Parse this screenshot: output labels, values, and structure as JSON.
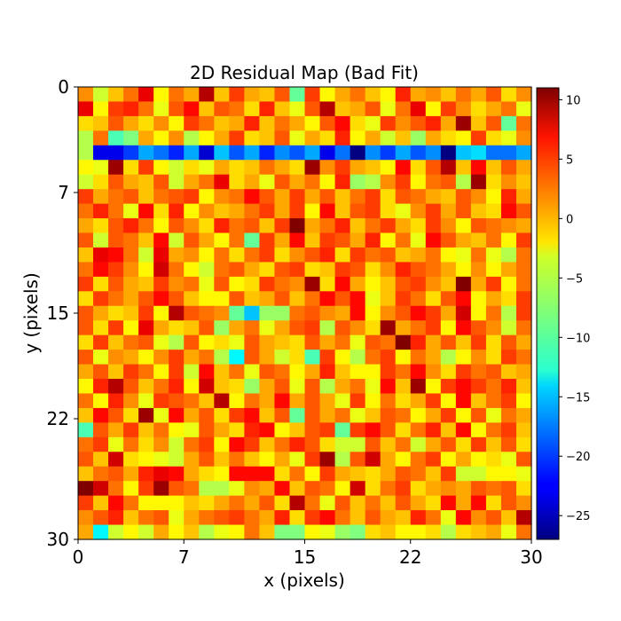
{
  "chart_data": {
    "type": "heatmap",
    "title": "2D Residual Map (Bad Fit)",
    "xlabel": "x (pixels)",
    "ylabel": "y (pixels)",
    "x_ticks": [
      "0",
      "7",
      "15",
      "22",
      "30"
    ],
    "y_ticks": [
      "0",
      "7",
      "15",
      "22",
      "30"
    ],
    "xlim": [
      0,
      30
    ],
    "ylim": [
      30,
      0
    ],
    "colormap": "jet",
    "vmin": -27,
    "vmax": 11,
    "colorbar_ticks": [
      "10",
      "5",
      "0",
      "−5",
      "−10",
      "−15",
      "−20",
      "−25"
    ],
    "colorbar_values": [
      10,
      5,
      0,
      -5,
      -10,
      -15,
      -20,
      -25
    ],
    "grid": false,
    "values": [
      [
        1,
        -5,
        -1,
        2,
        7,
        -3,
        2,
        0,
        9,
        -1,
        4,
        0,
        -1,
        3,
        -9,
        4,
        -3,
        0,
        2,
        -1,
        -3,
        5,
        0,
        1,
        -1,
        2,
        0,
        3,
        -2,
        1
      ],
      [
        7,
        -3,
        4,
        5,
        2,
        -4,
        3,
        6,
        -1,
        3,
        2,
        -2,
        5,
        -1,
        -4,
        3,
        9,
        -1,
        0,
        3,
        -4,
        2,
        7,
        -3,
        4,
        1,
        -2,
        0,
        2,
        -4
      ],
      [
        -2,
        -1,
        3,
        0,
        -2,
        1,
        -3,
        4,
        2,
        -1,
        0,
        5,
        -1,
        2,
        0,
        -3,
        3,
        6,
        -2,
        -4,
        4,
        1,
        3,
        5,
        0,
        10,
        -1,
        3,
        -9,
        2
      ],
      [
        -6,
        2,
        -10,
        -8,
        0,
        -3,
        1,
        -6,
        -3,
        0,
        4,
        -2,
        -1,
        3,
        -4,
        0,
        -2,
        5,
        -3,
        0,
        -5,
        -1,
        -7,
        0,
        -2,
        -3,
        4,
        -2,
        -4,
        1
      ],
      [
        -6,
        -23,
        -23,
        -20,
        -16,
        -18,
        -21,
        -16,
        -24,
        -15,
        -19,
        -16,
        -21,
        -17,
        -19,
        -16,
        -23,
        -18,
        -27,
        -17,
        -20,
        -16,
        -19,
        -17,
        -27,
        -15,
        -14,
        -18,
        -18,
        -16
      ],
      [
        -3,
        -4,
        10,
        -2,
        4,
        -3,
        -5,
        -2,
        -4,
        0,
        -2,
        -1,
        2,
        0,
        -2,
        10,
        1,
        4,
        0,
        -1,
        -3,
        6,
        -2,
        3,
        9,
        -1,
        6,
        -1,
        3,
        0
      ],
      [
        -5,
        -2,
        3,
        0,
        -1,
        3,
        -5,
        0,
        2,
        7,
        -2,
        0,
        -4,
        3,
        0,
        2,
        -3,
        5,
        -7,
        -6,
        1,
        4,
        -3,
        2,
        3,
        -6,
        10,
        -2,
        1,
        -1
      ],
      [
        4,
        0,
        2,
        3,
        -1,
        2,
        3,
        4,
        -3,
        1,
        2,
        6,
        3,
        0,
        4,
        0,
        3,
        -1,
        2,
        4,
        -2,
        3,
        2,
        0,
        -1,
        3,
        1,
        -3,
        5,
        0
      ],
      [
        2,
        5,
        2,
        -4,
        6,
        -2,
        5,
        -3,
        1,
        -1,
        0,
        2,
        4,
        0,
        4,
        -3,
        6,
        -1,
        3,
        4,
        -2,
        -4,
        1,
        4,
        0,
        3,
        -1,
        -2,
        6,
        3
      ],
      [
        0,
        -2,
        3,
        5,
        2,
        -3,
        3,
        1,
        -2,
        5,
        2,
        3,
        -1,
        4,
        11,
        0,
        2,
        5,
        -1,
        2,
        4,
        0,
        -2,
        4,
        1,
        -3,
        3,
        2,
        1,
        0
      ],
      [
        3,
        -5,
        3,
        2,
        -1,
        6,
        -5,
        3,
        0,
        -3,
        2,
        -9,
        4,
        0,
        6,
        -1,
        4,
        3,
        0,
        5,
        -3,
        2,
        -4,
        6,
        3,
        0,
        -1,
        2,
        -3,
        4
      ],
      [
        -1,
        7,
        6,
        2,
        -5,
        7,
        0,
        1,
        -3,
        2,
        -2,
        2,
        4,
        -2,
        1,
        3,
        5,
        -2,
        4,
        2,
        3,
        -1,
        0,
        2,
        -3,
        -4,
        2,
        -4,
        -6,
        2
      ],
      [
        2,
        6,
        4,
        1,
        -3,
        8,
        2,
        -3,
        -5,
        2,
        3,
        0,
        -2,
        3,
        4,
        -2,
        -1,
        4,
        3,
        -2,
        1,
        5,
        3,
        2,
        0,
        -3,
        1,
        -3,
        0,
        2
      ],
      [
        4,
        -2,
        3,
        0,
        -1,
        4,
        1,
        2,
        -4,
        3,
        -3,
        -2,
        4,
        2,
        1,
        10,
        -2,
        6,
        0,
        -3,
        -1,
        3,
        4,
        1,
        -1,
        11,
        0,
        4,
        -3,
        2
      ],
      [
        -2,
        4,
        2,
        0,
        3,
        6,
        3,
        -1,
        -3,
        -3,
        3,
        -1,
        0,
        3,
        -1,
        2,
        6,
        3,
        6,
        -4,
        -1,
        4,
        2,
        -2,
        3,
        6,
        -3,
        0,
        -2,
        4
      ],
      [
        3,
        0,
        -2,
        -1,
        4,
        -3,
        9,
        3,
        2,
        1,
        -9,
        -15,
        -7,
        -7,
        2,
        3,
        1,
        0,
        6,
        -3,
        1,
        3,
        6,
        4,
        0,
        8,
        -3,
        2,
        -6,
        4
      ],
      [
        3,
        -2,
        4,
        -3,
        7,
        0,
        -2,
        -1,
        3,
        -7,
        0,
        2,
        -4,
        0,
        3,
        4,
        -6,
        3,
        1,
        -2,
        10,
        0,
        2,
        4,
        -3,
        6,
        3,
        1,
        -5,
        2
      ],
      [
        -2,
        4,
        -1,
        2,
        3,
        -4,
        -6,
        3,
        -3,
        -2,
        -4,
        3,
        0,
        -1,
        -2,
        3,
        0,
        2,
        -4,
        3,
        2,
        11,
        5,
        0,
        3,
        -1,
        4,
        -2,
        3,
        0
      ],
      [
        3,
        -4,
        1,
        0,
        -3,
        1,
        4,
        0,
        2,
        -6,
        -13,
        3,
        0,
        -5,
        -2,
        -10,
        4,
        -3,
        -6,
        2,
        4,
        -3,
        2,
        0,
        -6,
        -3,
        1,
        -2,
        4,
        2
      ],
      [
        0,
        3,
        -1,
        4,
        2,
        -3,
        4,
        -5,
        6,
        -1,
        2,
        -4,
        3,
        2,
        -3,
        0,
        5,
        -1,
        -3,
        -3,
        4,
        2,
        6,
        1,
        -2,
        4,
        2,
        3,
        -1,
        0
      ],
      [
        -3,
        5,
        9,
        3,
        -1,
        2,
        5,
        -3,
        8,
        -1,
        -2,
        -7,
        0,
        3,
        -4,
        3,
        -6,
        0,
        2,
        -4,
        6,
        -1,
        10,
        -3,
        4,
        6,
        4,
        2,
        5,
        -1
      ],
      [
        2,
        -3,
        5,
        1,
        -4,
        4,
        3,
        2,
        -1,
        9,
        -3,
        2,
        0,
        6,
        0,
        3,
        0,
        -4,
        4,
        -3,
        2,
        -2,
        0,
        4,
        -3,
        6,
        -1,
        2,
        4,
        -3
      ],
      [
        -1,
        6,
        3,
        -2,
        10,
        -4,
        6,
        0,
        3,
        -2,
        4,
        6,
        -1,
        3,
        -9,
        3,
        0,
        2,
        -4,
        -1,
        3,
        2,
        -3,
        0,
        4,
        -3,
        3,
        -4,
        2,
        0
      ],
      [
        -10,
        3,
        0,
        4,
        -1,
        2,
        -3,
        -4,
        3,
        0,
        -2,
        5,
        6,
        -3,
        -1,
        3,
        4,
        -9,
        4,
        6,
        3,
        -2,
        2,
        5,
        -1,
        6,
        -3,
        2,
        4,
        -1
      ],
      [
        2,
        4,
        -4,
        2,
        -2,
        1,
        -5,
        2,
        4,
        -3,
        6,
        4,
        -1,
        2,
        5,
        3,
        -2,
        -5,
        -5,
        3,
        -1,
        2,
        -5,
        0,
        3,
        -2,
        4,
        -1,
        3,
        -2
      ],
      [
        3,
        -1,
        8,
        -2,
        -3,
        -4,
        -5,
        0,
        3,
        -1,
        2,
        -1,
        -3,
        0,
        -4,
        4,
        10,
        -6,
        3,
        8,
        0,
        -3,
        2,
        4,
        -3,
        0,
        -3,
        -2,
        -4,
        3
      ],
      [
        -1,
        2,
        3,
        0,
        5,
        7,
        6,
        0,
        -2,
        -3,
        6,
        6,
        6,
        -2,
        2,
        -3,
        4,
        0,
        -1,
        -2,
        0,
        3,
        2,
        -1,
        4,
        -5,
        -5,
        -3,
        -3,
        -4
      ],
      [
        11,
        8,
        2,
        -3,
        4,
        10,
        3,
        2,
        -6,
        -6,
        -4,
        1,
        0,
        6,
        -1,
        3,
        2,
        -3,
        8,
        -2,
        2,
        4,
        -2,
        0,
        1,
        0,
        3,
        2,
        3,
        -2
      ],
      [
        4,
        -1,
        6,
        2,
        -3,
        -3,
        -3,
        -1,
        -2,
        0,
        2,
        0,
        3,
        -2,
        9,
        2,
        -4,
        3,
        -1,
        2,
        -1,
        3,
        0,
        -2,
        6,
        0,
        6,
        -2,
        3,
        1
      ],
      [
        1,
        3,
        5,
        -1,
        2,
        3,
        -4,
        0,
        2,
        3,
        4,
        2,
        0,
        5,
        -2,
        4,
        6,
        2,
        -1,
        3,
        0,
        -1,
        5,
        2,
        -4,
        6,
        1,
        3,
        -1,
        9
      ],
      [
        0,
        -13,
        -5,
        -3,
        -5,
        0,
        -3,
        -1,
        -6,
        -4,
        -3,
        2,
        -1,
        -8,
        -8,
        -3,
        -4,
        -7,
        -8,
        -2,
        -1,
        -3,
        -3,
        -2,
        -6,
        -2,
        -1,
        0,
        -4,
        2
      ]
    ]
  }
}
